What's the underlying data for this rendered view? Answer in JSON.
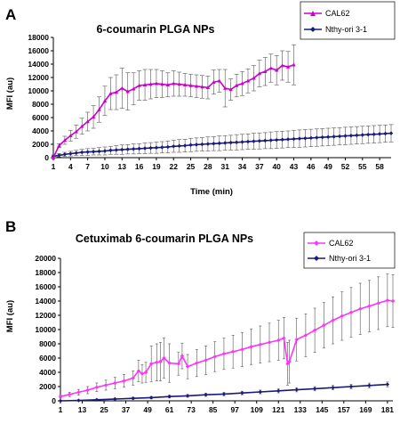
{
  "chart_data": [
    {
      "panel": "A",
      "type": "line",
      "title": "6-coumarin PLGA NPs",
      "xlabel": "Time (min)",
      "ylabel": "MFI (au)",
      "ylim": [
        0,
        18000
      ],
      "yticks": [
        0,
        2000,
        4000,
        6000,
        8000,
        10000,
        12000,
        14000,
        16000,
        18000
      ],
      "xticks": [
        1,
        4,
        7,
        10,
        13,
        16,
        19,
        22,
        25,
        28,
        31,
        34,
        37,
        40,
        43,
        46,
        49,
        52,
        55,
        58
      ],
      "xlim": [
        1,
        60
      ],
      "grid": false,
      "legend_position": "top-right",
      "error_bars": true,
      "series": [
        {
          "name": "CAL62",
          "color": "#cc00cc",
          "marker": "triangle",
          "x": [
            1,
            2,
            3,
            4,
            5,
            6,
            7,
            8,
            9,
            10,
            11,
            12,
            13,
            14,
            15,
            16,
            17,
            18,
            19,
            20,
            21,
            22,
            23,
            24,
            25,
            26,
            27,
            28,
            29,
            30,
            31,
            32,
            33,
            34,
            35,
            36,
            37,
            38,
            39,
            40,
            41,
            42,
            43
          ],
          "values": [
            0,
            1800,
            2600,
            3300,
            3900,
            4700,
            5400,
            6100,
            7200,
            8500,
            9600,
            9800,
            10400,
            9900,
            10300,
            10800,
            10900,
            11000,
            11100,
            11000,
            10900,
            11100,
            11000,
            10900,
            10800,
            10700,
            10600,
            10500,
            11300,
            11500,
            10400,
            10200,
            10800,
            11100,
            11500,
            11900,
            12600,
            12900,
            13400,
            13100,
            13800,
            13600,
            13900
          ],
          "errors": [
            0,
            300,
            600,
            800,
            1000,
            1200,
            1400,
            1700,
            1900,
            2200,
            2400,
            2600,
            3000,
            2800,
            2400,
            2200,
            2300,
            2200,
            2100,
            2000,
            1800,
            1900,
            1800,
            1700,
            1700,
            1700,
            1700,
            1700,
            1800,
            1700,
            2800,
            1600,
            1700,
            1800,
            1800,
            1900,
            2000,
            2100,
            2100,
            2200,
            2200,
            2300,
            3000
          ]
        },
        {
          "name": "Nthy-ori 3-1",
          "color": "#1a1a7a",
          "marker": "diamond",
          "x": [
            1,
            2,
            3,
            4,
            5,
            6,
            7,
            8,
            9,
            10,
            11,
            12,
            13,
            14,
            15,
            16,
            17,
            18,
            19,
            20,
            21,
            22,
            23,
            24,
            25,
            26,
            27,
            28,
            29,
            30,
            31,
            32,
            33,
            34,
            35,
            36,
            37,
            38,
            39,
            40,
            41,
            42,
            43,
            44,
            45,
            46,
            47,
            48,
            49,
            50,
            51,
            52,
            53,
            54,
            55,
            56,
            57,
            58,
            59,
            60
          ],
          "values": [
            200,
            350,
            500,
            600,
            700,
            800,
            850,
            900,
            950,
            1000,
            1100,
            1150,
            1200,
            1250,
            1300,
            1350,
            1400,
            1450,
            1500,
            1550,
            1600,
            1700,
            1750,
            1800,
            1900,
            1950,
            2000,
            2050,
            2100,
            2150,
            2200,
            2250,
            2300,
            2350,
            2400,
            2450,
            2500,
            2550,
            2600,
            2650,
            2700,
            2750,
            2800,
            2850,
            2900,
            2950,
            3000,
            3050,
            3100,
            3150,
            3200,
            3250,
            3300,
            3350,
            3400,
            3450,
            3500,
            3550,
            3600,
            3650
          ],
          "errors": [
            200,
            250,
            300,
            350,
            400,
            450,
            500,
            500,
            550,
            600,
            600,
            650,
            700,
            700,
            750,
            750,
            800,
            800,
            850,
            850,
            900,
            900,
            950,
            950,
            1000,
            1000,
            1000,
            1050,
            1050,
            1100,
            1100,
            1100,
            1150,
            1150,
            1150,
            1200,
            1200,
            1200,
            1250,
            1250,
            1250,
            1250,
            1300,
            1300,
            1300,
            1300,
            1300,
            1300,
            1300,
            1300,
            1300,
            1300,
            1300,
            1300,
            1300,
            1300,
            1300,
            1300,
            1300,
            1300
          ]
        }
      ]
    },
    {
      "panel": "B",
      "type": "line",
      "title": "Cetuximab 6-coumarin PLGA NPs",
      "xlabel": "",
      "ylabel": "MFI (au)",
      "ylim": [
        0,
        20000
      ],
      "yticks": [
        0,
        2000,
        4000,
        6000,
        8000,
        10000,
        12000,
        14000,
        16000,
        18000,
        20000
      ],
      "xticks": [
        1,
        13,
        25,
        37,
        49,
        61,
        73,
        85,
        97,
        109,
        121,
        133,
        145,
        157,
        169,
        181
      ],
      "xlim": [
        1,
        184
      ],
      "grid": false,
      "legend_position": "top-right",
      "error_bars": true,
      "series": [
        {
          "name": "CAL62",
          "color": "#ff33ff",
          "marker": "diamond",
          "x": [
            1,
            6,
            11,
            16,
            21,
            26,
            31,
            36,
            41,
            44,
            46,
            48,
            51,
            54,
            56,
            58,
            61,
            66,
            68,
            71,
            76,
            81,
            86,
            91,
            96,
            101,
            106,
            111,
            116,
            121,
            124,
            126,
            127,
            131,
            136,
            141,
            146,
            151,
            156,
            161,
            166,
            171,
            176,
            181,
            184
          ],
          "values": [
            600,
            900,
            1200,
            1500,
            1900,
            2200,
            2500,
            2800,
            3200,
            4200,
            3800,
            4000,
            5200,
            5400,
            5500,
            6000,
            5300,
            5200,
            6300,
            4800,
            5300,
            5700,
            6200,
            6600,
            6900,
            7200,
            7600,
            7900,
            8200,
            8500,
            8800,
            5200,
            5500,
            8600,
            9200,
            9900,
            10600,
            11300,
            11900,
            12400,
            12900,
            13300,
            13700,
            14100,
            14000
          ],
          "errors": [
            200,
            300,
            400,
            500,
            600,
            700,
            800,
            900,
            1000,
            1500,
            1300,
            1400,
            2500,
            2600,
            2700,
            2800,
            2700,
            1600,
            1800,
            1700,
            1900,
            2000,
            2100,
            2200,
            2300,
            2400,
            2500,
            2600,
            2700,
            2800,
            2900,
            3000,
            3000,
            3000,
            3000,
            3100,
            3200,
            3300,
            3400,
            3500,
            3600,
            3600,
            3700,
            3700,
            3700
          ]
        },
        {
          "name": "Nthy-ori 3-1",
          "color": "#1a1a7a",
          "marker": "diamond",
          "x": [
            1,
            11,
            21,
            31,
            41,
            51,
            61,
            71,
            81,
            91,
            101,
            111,
            121,
            131,
            141,
            151,
            161,
            171,
            181
          ],
          "values": [
            0,
            50,
            150,
            250,
            350,
            450,
            600,
            700,
            850,
            950,
            1100,
            1250,
            1400,
            1550,
            1700,
            1850,
            2000,
            2150,
            2300
          ],
          "errors": [
            50,
            80,
            100,
            120,
            150,
            170,
            200,
            200,
            220,
            240,
            250,
            260,
            280,
            290,
            300,
            310,
            320,
            330,
            340
          ]
        }
      ]
    }
  ]
}
